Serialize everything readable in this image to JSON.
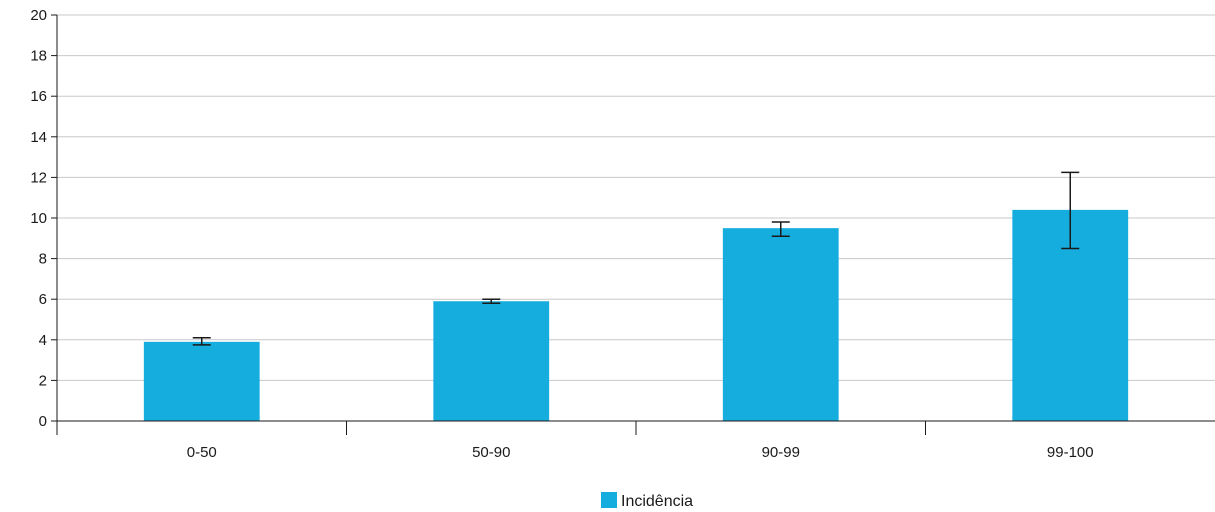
{
  "chart_data": {
    "type": "bar",
    "categories": [
      "0-50",
      "50-90",
      "90-99",
      "99-100"
    ],
    "series": [
      {
        "name": "Incidência",
        "values": [
          3.9,
          5.9,
          9.5,
          10.4
        ],
        "error_low": [
          3.75,
          5.8,
          9.1,
          8.5
        ],
        "error_high": [
          4.1,
          6.0,
          9.8,
          12.25
        ]
      }
    ],
    "y_ticks": [
      "0",
      "2",
      "4",
      "6",
      "8",
      "10",
      "12",
      "14",
      "16",
      "18",
      "20"
    ],
    "ylim": [
      0,
      20
    ],
    "grid": true,
    "legend_position": "bottom-center",
    "colors": {
      "bar": "#14ADDE",
      "grid": "#c8c8c8",
      "axis": "#1a1a1a",
      "error": "#1a1a1a"
    }
  }
}
